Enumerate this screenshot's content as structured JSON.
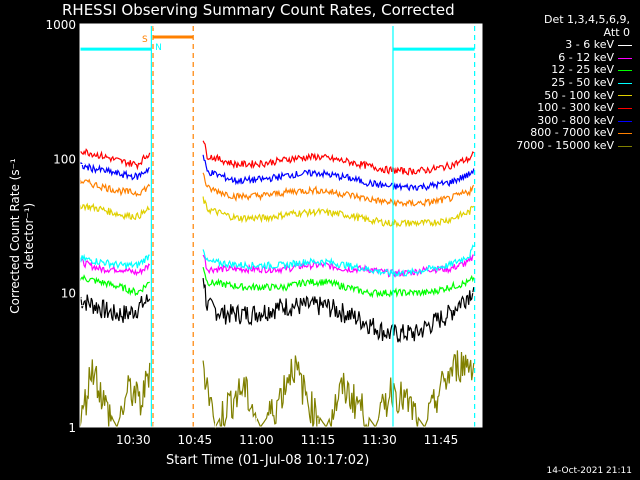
{
  "title": "RHESSI Observing Summary Count Rates, Corrected",
  "xlabel": "Start Time (01-Jul-08 10:17:02)",
  "ylabel": "Corrected Count Rate (s⁻¹ detector⁻¹)",
  "timestamp": "14-Oct-2021 21:11",
  "legend": {
    "header_line1": "Det 1,3,4,5,6,9,",
    "header_line2": "Att 0",
    "items": [
      {
        "label": "3 - 6 keV",
        "color": "#000000"
      },
      {
        "label": "6 - 12 keV",
        "color": "#ff00ff"
      },
      {
        "label": "12 - 25 keV",
        "color": "#00ff00"
      },
      {
        "label": "25 - 50 keV",
        "color": "#00ffff"
      },
      {
        "label": "50 - 100 keV",
        "color": "#e0d000"
      },
      {
        "label": "100 - 300 keV",
        "color": "#ff0000"
      },
      {
        "label": "300 - 800 keV",
        "color": "#0000ff"
      },
      {
        "label": "800 - 7000 keV",
        "color": "#ff8000"
      },
      {
        "label": "7000 - 15000 keV",
        "color": "#808000"
      }
    ]
  },
  "annotations": {
    "saa_flag": "S",
    "night_flag": "N"
  },
  "chart_data": {
    "type": "line",
    "title": "RHESSI Observing Summary Count Rates, Corrected",
    "xlabel": "Start Time (01-Jul-08 10:17:02)",
    "ylabel": "Corrected Count Rate (s⁻¹ detector⁻¹)",
    "x_unit": "minutes after 10:17:02",
    "xlim": [
      0,
      98
    ],
    "ylim": [
      1,
      1000
    ],
    "yscale": "log",
    "xticks": [
      {
        "x": 13,
        "label": "10:30"
      },
      {
        "x": 28,
        "label": "10:45"
      },
      {
        "x": 43,
        "label": "11:00"
      },
      {
        "x": 58,
        "label": "11:15"
      },
      {
        "x": 73,
        "label": "11:30"
      },
      {
        "x": 88,
        "label": "11:45"
      }
    ],
    "yticks": [
      {
        "y": 1,
        "label": "1"
      },
      {
        "y": 10,
        "label": "10"
      },
      {
        "y": 100,
        "label": "100"
      },
      {
        "y": 1000,
        "label": "1000"
      }
    ],
    "data_gap": [
      17.5,
      30
    ],
    "series": [
      {
        "name": "3 - 6 keV",
        "color": "#000000",
        "segments": [
          {
            "x": [
              0,
              4,
              8,
              12,
              17
            ],
            "y": [
              9,
              8,
              7,
              7,
              9
            ]
          },
          {
            "x": [
              30,
              31,
              35,
              42,
              50,
              55,
              60,
              65,
              70,
              75,
              78,
              82,
              86,
              90,
              95,
              96
            ],
            "y": [
              14,
              8,
              7,
              7,
              8,
              8,
              8,
              7,
              6,
              5,
              5,
              5,
              6,
              7,
              10,
              11
            ]
          }
        ]
      },
      {
        "name": "6 - 12 keV",
        "color": "#ff00ff",
        "segments": [
          {
            "x": [
              0,
              5,
              10,
              14,
              17
            ],
            "y": [
              17,
              15,
              15,
              14,
              16
            ]
          },
          {
            "x": [
              30,
              31,
              40,
              50,
              55,
              60,
              65,
              70,
              75,
              80,
              85,
              90,
              95,
              96
            ],
            "y": [
              20,
              15,
              15,
              15,
              16,
              16,
              15,
              15,
              14,
              14,
              15,
              15,
              17,
              19
            ]
          }
        ]
      },
      {
        "name": "12 - 25 keV",
        "color": "#00ff00",
        "segments": [
          {
            "x": [
              0,
              5,
              10,
              14,
              17
            ],
            "y": [
              13,
              12,
              11,
              10,
              12
            ]
          },
          {
            "x": [
              30,
              31,
              40,
              50,
              55,
              60,
              65,
              70,
              75,
              80,
              85,
              90,
              95,
              96
            ],
            "y": [
              16,
              12,
              11,
              11,
              12,
              12,
              11,
              10,
              10,
              10,
              10,
              11,
              12,
              13
            ]
          }
        ]
      },
      {
        "name": "25 - 50 keV",
        "color": "#00ffff",
        "segments": [
          {
            "x": [
              0,
              5,
              10,
              14,
              17
            ],
            "y": [
              18,
              17,
              16,
              16,
              19
            ]
          },
          {
            "x": [
              30,
              31,
              40,
              50,
              55,
              60,
              65,
              70,
              75,
              80,
              85,
              90,
              95,
              96
            ],
            "y": [
              22,
              17,
              16,
              16,
              17,
              17,
              16,
              15,
              14,
              14,
              15,
              16,
              19,
              22
            ]
          },
          {
            "x": [
              0,
              17.4
            ],
            "y": [
              650,
              650
            ]
          },
          {
            "x": [
              76.3,
              96.2
            ],
            "y": [
              650,
              650
            ]
          }
        ]
      },
      {
        "name": "50 - 100 keV",
        "color": "#e0d000",
        "segments": [
          {
            "x": [
              0,
              5,
              10,
              14,
              17
            ],
            "y": [
              45,
              42,
              38,
              37,
              42
            ]
          },
          {
            "x": [
              30,
              31,
              38,
              45,
              52,
              58,
              65,
              70,
              75,
              80,
              85,
              90,
              95,
              96
            ],
            "y": [
              50,
              42,
              36,
              36,
              39,
              40,
              38,
              35,
              33,
              33,
              33,
              35,
              40,
              44
            ]
          }
        ]
      },
      {
        "name": "100 - 300 keV",
        "color": "#ff0000",
        "segments": [
          {
            "x": [
              0,
              5,
              10,
              14,
              17
            ],
            "y": [
              115,
              105,
              95,
              90,
              110
            ]
          },
          {
            "x": [
              30,
              31,
              38,
              45,
              52,
              58,
              65,
              70,
              75,
              80,
              85,
              90,
              95,
              96
            ],
            "y": [
              140,
              105,
              90,
              92,
              100,
              103,
              95,
              88,
              82,
              80,
              82,
              88,
              100,
              110
            ]
          }
        ]
      },
      {
        "name": "300 - 800 keV",
        "color": "#0000ff",
        "segments": [
          {
            "x": [
              0,
              5,
              10,
              14,
              17
            ],
            "y": [
              88,
              82,
              76,
              73,
              85
            ]
          },
          {
            "x": [
              30,
              31,
              38,
              45,
              52,
              58,
              65,
              70,
              75,
              80,
              85,
              90,
              95,
              96
            ],
            "y": [
              105,
              80,
              68,
              70,
              76,
              78,
              72,
              66,
              62,
              61,
              62,
              66,
              76,
              84
            ]
          }
        ]
      },
      {
        "name": "800 - 7000 keV",
        "color": "#ff8000",
        "segments": [
          {
            "x": [
              0,
              5,
              10,
              14,
              17
            ],
            "y": [
              68,
              62,
              57,
              55,
              62
            ]
          },
          {
            "x": [
              30,
              31,
              38,
              45,
              52,
              58,
              65,
              70,
              75,
              80,
              85,
              90,
              95,
              96
            ],
            "y": [
              80,
              60,
              52,
              53,
              57,
              58,
              54,
              50,
              47,
              46,
              47,
              50,
              57,
              63
            ]
          },
          {
            "x": [
              17.8,
              27.6
            ],
            "y": [
              800,
              800
            ]
          }
        ]
      },
      {
        "name": "7000 - 15000 keV",
        "color": "#808000",
        "segments": [
          {
            "x": [
              0,
              3,
              6,
              9,
              12,
              15,
              17
            ],
            "y": [
              1,
              3,
              1.5,
              1,
              2,
              1.5,
              3
            ]
          },
          {
            "x": [
              30,
              33,
              36,
              40,
              44,
              48,
              52,
              56,
              60,
              64,
              68,
              72,
              76,
              80,
              84,
              88,
              92,
              96
            ],
            "y": [
              3,
              1,
              1.5,
              2,
              1,
              1.5,
              3,
              1.5,
              1,
              2,
              1.5,
              1,
              2,
              1.5,
              1,
              2,
              3,
              3
            ]
          }
        ]
      }
    ],
    "vertical_markers": [
      {
        "x": 17.4,
        "color": "#00ffff",
        "style": "solid"
      },
      {
        "x": 17.8,
        "color": "#ff8000",
        "style": "dashed"
      },
      {
        "x": 27.6,
        "color": "#ff8000",
        "style": "dashed"
      },
      {
        "x": 76.3,
        "color": "#00ffff",
        "style": "solid"
      },
      {
        "x": 96.2,
        "color": "#00ffff",
        "style": "dashed"
      }
    ]
  }
}
